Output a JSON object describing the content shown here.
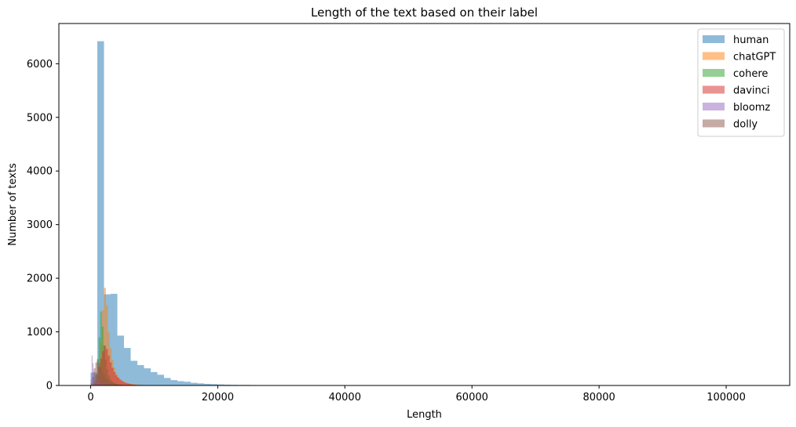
{
  "chart_data": {
    "type": "histogram",
    "title": "Length of the text based on their label",
    "xlabel": "Length",
    "ylabel": "Number of texts",
    "xlim": [
      -5000,
      110000
    ],
    "ylim": [
      0,
      6750
    ],
    "xticks": [
      0,
      20000,
      40000,
      60000,
      80000,
      100000
    ],
    "xtick_labels": [
      "0",
      "20000",
      "40000",
      "60000",
      "80000",
      "100000"
    ],
    "yticks": [
      0,
      1000,
      2000,
      3000,
      4000,
      5000,
      6000
    ],
    "ytick_labels": [
      "0",
      "1000",
      "2000",
      "3000",
      "4000",
      "5000",
      "6000"
    ],
    "legend_position": "top-right",
    "series": [
      {
        "name": "human",
        "color": "#1f77b4",
        "alpha": 0.5,
        "bin_start": 0,
        "bin_width": 1050,
        "values": [
          240,
          6420,
          1700,
          1710,
          930,
          700,
          460,
          380,
          320,
          250,
          200,
          140,
          100,
          80,
          70,
          50,
          40,
          30,
          25,
          20,
          15,
          12,
          10,
          10,
          8,
          6,
          5,
          5,
          4,
          3,
          2,
          2,
          0,
          0,
          2,
          0,
          0,
          2,
          0,
          0,
          0,
          0,
          0,
          0,
          0,
          0,
          0,
          0,
          0,
          0,
          0,
          0,
          0,
          0,
          0,
          0,
          0,
          0,
          0,
          0,
          0,
          0,
          0,
          0,
          0,
          0,
          0,
          0,
          0,
          0,
          0,
          0,
          0,
          0,
          0,
          0,
          0,
          0,
          0,
          0,
          0,
          0,
          0,
          0,
          0,
          0,
          0,
          0,
          0,
          0,
          0,
          0,
          0,
          0,
          0,
          0,
          0,
          0,
          0,
          1
        ]
      },
      {
        "name": "chatGPT",
        "color": "#ff7f0e",
        "alpha": 0.5,
        "bin_start": 0,
        "bin_width": 300,
        "values": [
          0,
          0,
          30,
          120,
          350,
          800,
          1400,
          1820,
          1500,
          1000,
          700,
          480,
          330,
          230,
          160,
          120,
          90,
          70,
          55,
          45,
          38,
          32,
          26,
          22,
          18,
          15,
          12,
          10,
          8,
          7,
          6,
          5,
          4,
          3,
          3,
          2,
          2,
          1,
          1,
          1
        ]
      },
      {
        "name": "cohere",
        "color": "#2ca02c",
        "alpha": 0.5,
        "bin_start": 0,
        "bin_width": 250,
        "values": [
          0,
          10,
          60,
          200,
          500,
          900,
          1380,
          1100,
          750,
          480,
          300,
          190,
          120,
          80,
          55,
          40,
          28,
          20,
          14,
          10,
          7,
          5,
          4,
          3,
          2,
          2,
          1,
          1
        ]
      },
      {
        "name": "davinci",
        "color": "#d62728",
        "alpha": 0.5,
        "bin_start": 0,
        "bin_width": 300,
        "values": [
          0,
          20,
          80,
          200,
          350,
          500,
          640,
          740,
          680,
          560,
          430,
          330,
          250,
          190,
          145,
          110,
          85,
          65,
          50,
          38,
          29,
          22,
          17,
          13,
          10,
          8,
          6,
          5,
          4,
          3,
          2,
          2,
          1,
          1
        ]
      },
      {
        "name": "bloomz",
        "color": "#9467bd",
        "alpha": 0.5,
        "bin_start": 0,
        "bin_width": 150,
        "values": [
          120,
          560,
          420,
          260,
          180,
          140,
          110,
          90,
          70,
          55,
          45,
          38,
          32,
          27,
          22,
          18,
          15,
          12,
          10,
          8,
          6,
          5,
          4,
          3,
          2,
          2,
          1,
          1
        ]
      },
      {
        "name": "dolly",
        "color": "#8c564b",
        "alpha": 0.5,
        "bin_start": 0,
        "bin_width": 250,
        "values": [
          40,
          160,
          320,
          430,
          470,
          420,
          340,
          260,
          200,
          150,
          115,
          90,
          70,
          55,
          42,
          33,
          26,
          20,
          15,
          12,
          9,
          7,
          5,
          4,
          3,
          2,
          2,
          1,
          1
        ]
      }
    ]
  }
}
